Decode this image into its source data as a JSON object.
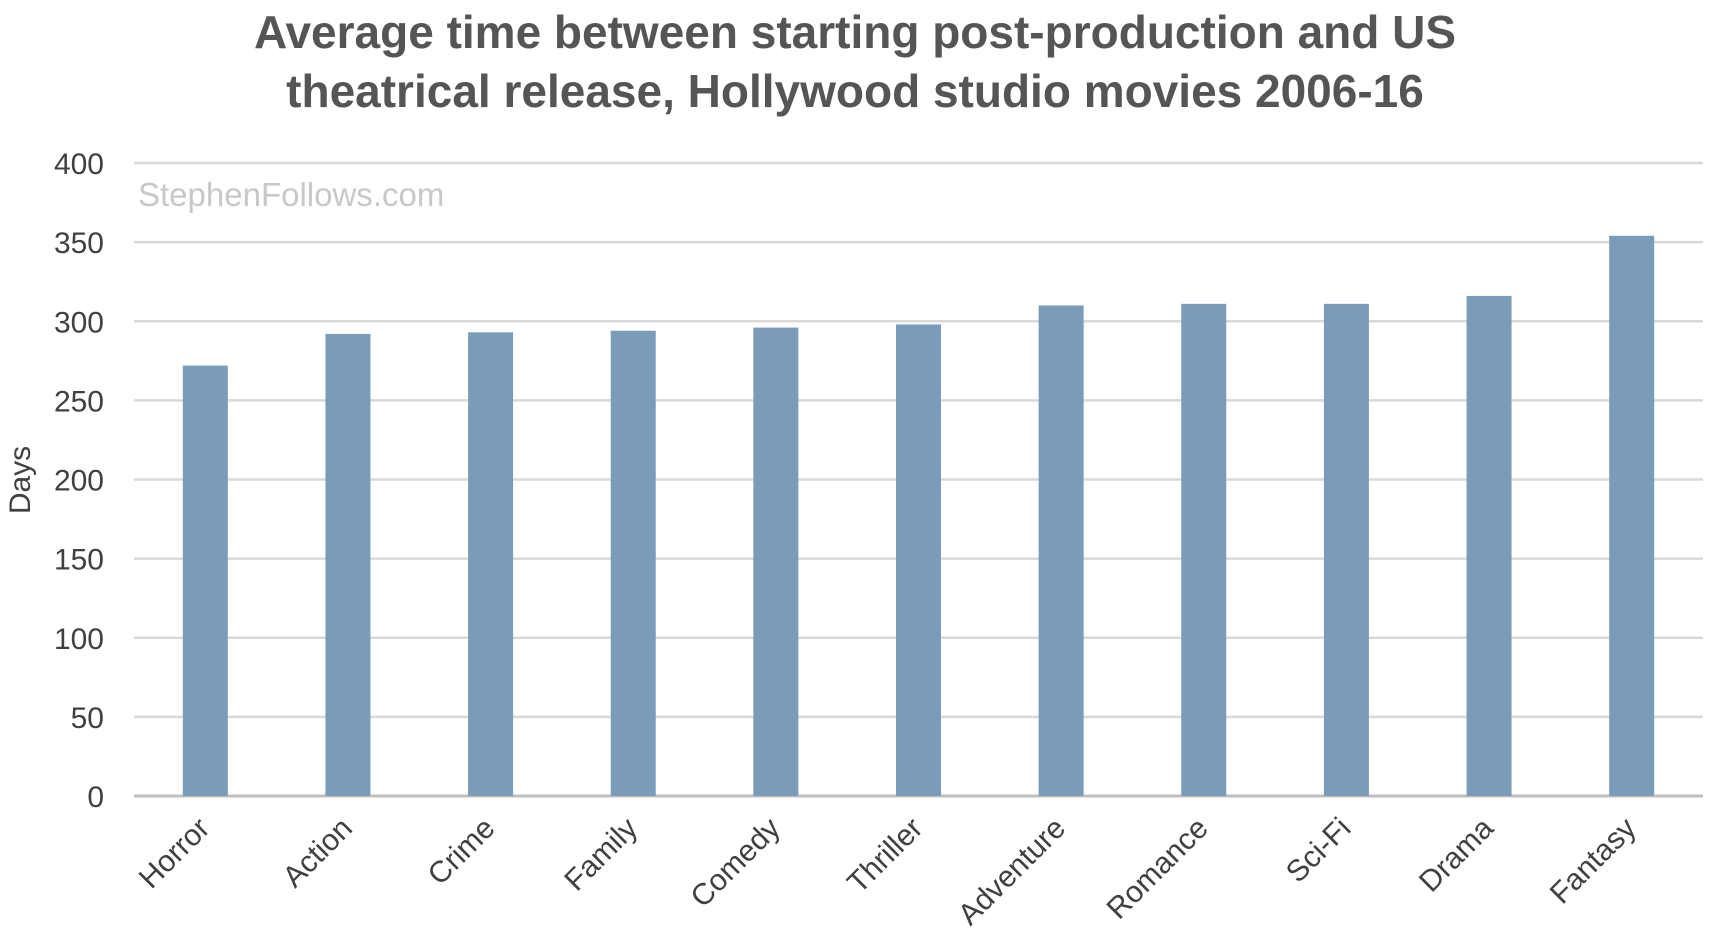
{
  "chart_data": {
    "type": "bar",
    "title_lines": [
      "Average time between starting post-production and US",
      "theatrical release, Hollywood studio movies 2006-16"
    ],
    "watermark": "StephenFollows.com",
    "xlabel": "",
    "ylabel": "Days",
    "ylim": [
      0,
      400
    ],
    "yticks": [
      0,
      50,
      100,
      150,
      200,
      250,
      300,
      350,
      400
    ],
    "grid": true,
    "legend": "none",
    "categories": [
      "Horror",
      "Action",
      "Crime",
      "Family",
      "Comedy",
      "Thriller",
      "Adventure",
      "Romance",
      "Sci-Fi",
      "Drama",
      "Fantasy"
    ],
    "values": [
      272,
      292,
      293,
      294,
      296,
      298,
      310,
      311,
      311,
      316,
      354
    ],
    "colors": {
      "bar": "#7a9cb8",
      "grid": "#d9d9d9",
      "axis": "#bfbfbf",
      "title": "#555555",
      "tick_text": "#404040",
      "watermark": "#c8c8c8"
    }
  }
}
